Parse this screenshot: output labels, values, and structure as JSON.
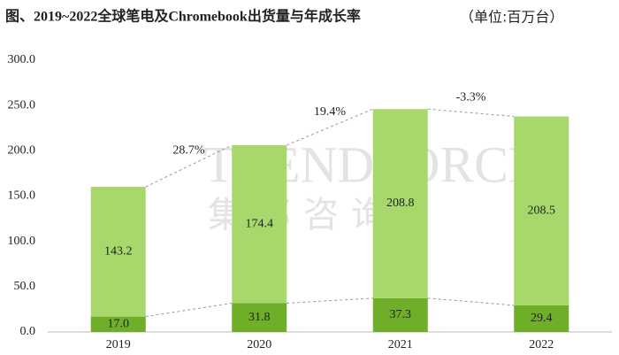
{
  "chart_data": {
    "type": "stacked-bar",
    "title": "图、2019~2022全球笔电及Chromebook出货量与年成长率",
    "subtitle": "（单位:百万台）",
    "categories": [
      "2019",
      "2020",
      "2021",
      "2022"
    ],
    "series": [
      {
        "color": "#6fae28",
        "values": [
          17.0,
          31.8,
          37.3,
          29.4
        ],
        "value_labels": [
          "17.0",
          "31.8",
          "37.3",
          "29.4"
        ]
      },
      {
        "color": "#a8d86c",
        "values": [
          143.2,
          174.4,
          208.8,
          208.5
        ]
      }
    ],
    "annotations": [
      "28.7%",
      "19.4%",
      "-3.3%"
    ],
    "watermark": [
      "TRENDFORCE",
      "集邦咨询"
    ],
    "ylim": [
      0,
      300
    ],
    "yticks": [
      {
        "value": 0,
        "label": "0.0"
      },
      {
        "value": 50,
        "label": "50.0"
      },
      {
        "value": 100,
        "label": "100.0"
      },
      {
        "value": 150,
        "label": "150.0"
      },
      {
        "value": 200,
        "label": "200.0"
      },
      {
        "value": 250,
        "label": "250.0"
      },
      {
        "value": 300,
        "label": "300.0"
      }
    ],
    "grid": false
  }
}
